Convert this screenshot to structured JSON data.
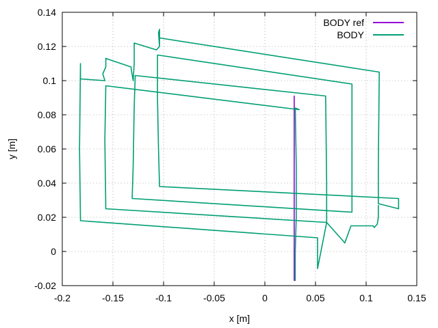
{
  "chart_data": {
    "type": "line",
    "title": "",
    "xlabel": "x [m]",
    "ylabel": "y [m]",
    "xlim": [
      -0.2,
      0.15
    ],
    "ylim": [
      -0.02,
      0.14
    ],
    "x_ticks": [
      -0.2,
      -0.15,
      -0.1,
      -0.05,
      0,
      0.05,
      0.1,
      0.15
    ],
    "x_tick_labels": [
      "-0.2",
      "-0.15",
      "-0.1",
      "-0.05",
      "0",
      "0.05",
      "0.1",
      "0.15"
    ],
    "y_ticks": [
      -0.02,
      0,
      0.02,
      0.04,
      0.06,
      0.08,
      0.1,
      0.12,
      0.14
    ],
    "y_tick_labels": [
      "-0.02",
      "0",
      "0.02",
      "0.04",
      "0.06",
      "0.08",
      "0.1",
      "0.12",
      "0.14"
    ],
    "grid": true,
    "legend_position": "top-right",
    "series": [
      {
        "name": "BODY ref",
        "color": "#9400d3",
        "points": [
          [
            0.029,
            0.091
          ],
          [
            0.029,
            -0.017
          ]
        ]
      },
      {
        "name": "BODY",
        "color": "#009e73",
        "points": [
          [
            0.03,
            -0.017
          ],
          [
            0.03,
            0.0
          ],
          [
            0.031,
            0.02
          ],
          [
            0.031,
            0.05
          ],
          [
            0.03,
            0.084
          ],
          [
            0.034,
            0.083
          ],
          [
            -0.157,
            0.097
          ],
          [
            -0.158,
            0.065
          ],
          [
            -0.157,
            0.025
          ],
          [
            -0.157,
            0.025
          ],
          [
            0.061,
            0.017
          ],
          [
            0.061,
            0.04
          ],
          [
            0.06,
            0.091
          ],
          [
            -0.128,
            0.103
          ],
          [
            -0.129,
            0.085
          ],
          [
            -0.13,
            0.05
          ],
          [
            -0.131,
            0.031
          ],
          [
            0.086,
            0.023
          ],
          [
            0.086,
            0.05
          ],
          [
            0.086,
            0.098
          ],
          [
            -0.106,
            0.115
          ],
          [
            -0.106,
            0.09
          ],
          [
            -0.105,
            0.06
          ],
          [
            -0.104,
            0.038
          ],
          [
            0.132,
            0.031
          ],
          [
            0.132,
            0.025
          ],
          [
            0.112,
            0.028
          ],
          [
            0.112,
            0.05
          ],
          [
            0.113,
            0.105
          ],
          [
            -0.104,
            0.125
          ],
          [
            -0.104,
            0.12
          ],
          [
            -0.105,
            0.128
          ],
          [
            -0.104,
            0.13
          ],
          [
            -0.104,
            0.12
          ],
          [
            -0.107,
            0.118
          ],
          [
            -0.129,
            0.122
          ],
          [
            -0.129,
            0.11
          ],
          [
            -0.13,
            0.1
          ],
          [
            -0.132,
            0.107
          ],
          [
            -0.132,
            0.108
          ],
          [
            -0.157,
            0.113
          ],
          [
            -0.157,
            0.108
          ],
          [
            -0.16,
            0.104
          ],
          [
            -0.158,
            0.1
          ],
          [
            -0.182,
            0.101
          ],
          [
            -0.182,
            0.11
          ],
          [
            -0.183,
            0.06
          ],
          [
            -0.182,
            0.018
          ],
          [
            0.052,
            0.008
          ],
          [
            0.052,
            -0.01
          ],
          [
            0.061,
            0.017
          ],
          [
            0.079,
            0.005
          ],
          [
            0.085,
            0.015
          ],
          [
            0.107,
            0.015
          ],
          [
            0.108,
            0.014
          ],
          [
            0.111,
            0.016
          ],
          [
            0.112,
            0.02
          ],
          [
            0.112,
            0.027
          ]
        ]
      }
    ]
  }
}
